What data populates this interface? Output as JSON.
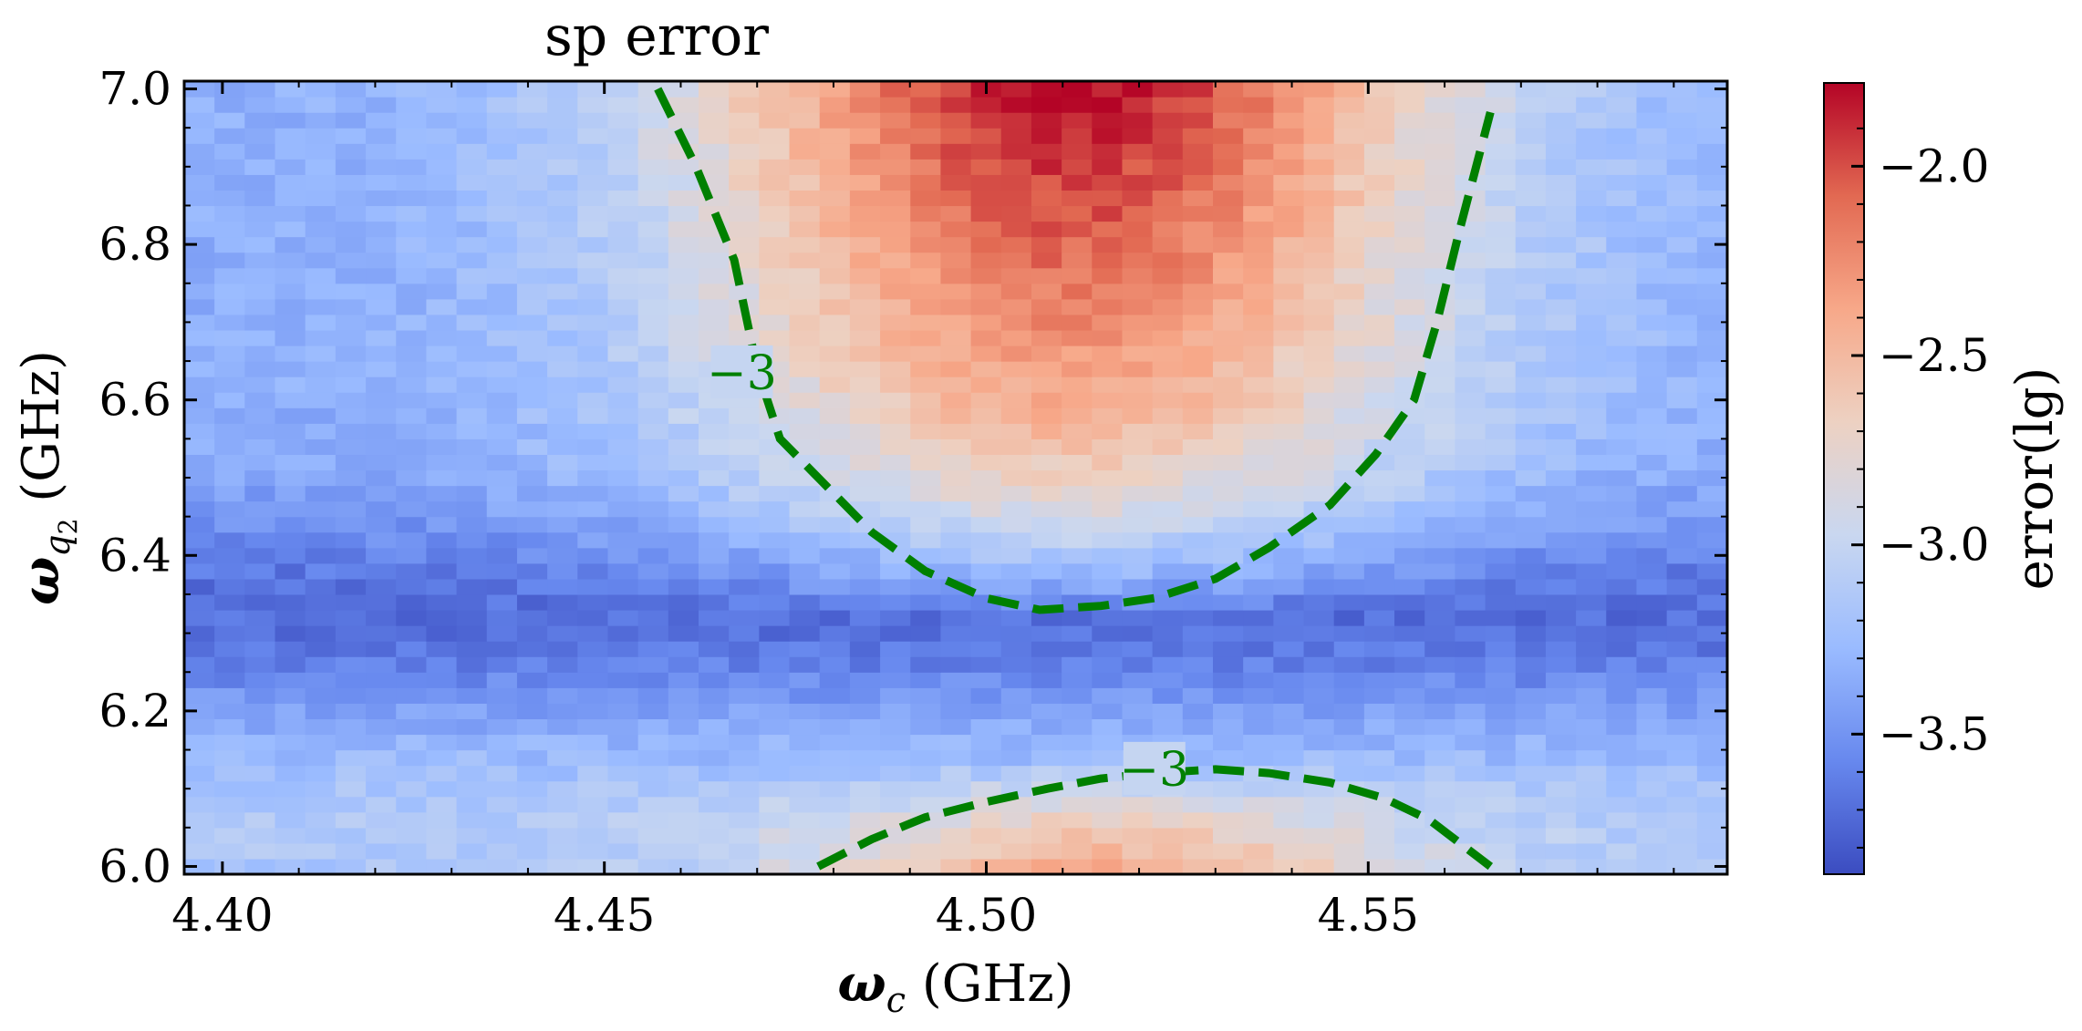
{
  "chart_data": {
    "type": "heatmap",
    "title": "sp error",
    "xlabel": "ω_c (GHz)",
    "ylabel": "ω_q2 (GHz)",
    "x_range": [
      4.395,
      4.597
    ],
    "y_range": [
      5.99,
      7.01
    ],
    "x_ticks": [
      4.4,
      4.45,
      4.5,
      4.55
    ],
    "x_tick_labels": [
      "4.40",
      "4.45",
      "4.50",
      "4.55"
    ],
    "y_ticks": [
      6.0,
      6.2,
      6.4,
      6.6,
      6.8,
      7.0
    ],
    "y_tick_labels": [
      "6.0",
      "6.2",
      "6.4",
      "6.6",
      "6.8",
      "7.0"
    ],
    "grid": {
      "nx": 51,
      "ny": 51
    },
    "colorbar": {
      "label": "error(lg)",
      "range": [
        -3.87,
        -1.78
      ],
      "ticks": [
        -3.5,
        -3.0,
        -2.5,
        -2.0
      ],
      "tick_labels": [
        "−3.5",
        "−3.0",
        "−2.5",
        "−2.0"
      ],
      "colormap": "coolwarm",
      "colors": [
        "#3b4cc0",
        "#6788ee",
        "#9abbff",
        "#c9d7f0",
        "#edd1c2",
        "#f7a889",
        "#e26952",
        "#b40426"
      ]
    },
    "peak": {
      "upper": {
        "x": 4.51,
        "y": 7.0,
        "value": -1.8
      },
      "lower": {
        "x": 4.515,
        "y": 6.0,
        "value": -2.7
      }
    },
    "contours": [
      {
        "level": -3,
        "label": "−3",
        "color": "#008000",
        "style": "dashed",
        "label_at": {
          "x": 4.468,
          "y": 6.635
        },
        "points": [
          [
            4.457,
            7.0
          ],
          [
            4.462,
            6.9
          ],
          [
            4.467,
            6.78
          ],
          [
            4.47,
            6.64
          ],
          [
            4.473,
            6.55
          ],
          [
            4.478,
            6.5
          ],
          [
            4.485,
            6.43
          ],
          [
            4.492,
            6.38
          ],
          [
            4.5,
            6.345
          ],
          [
            4.507,
            6.33
          ],
          [
            4.515,
            6.335
          ],
          [
            4.522,
            6.345
          ],
          [
            4.53,
            6.37
          ],
          [
            4.537,
            6.41
          ],
          [
            4.545,
            6.465
          ],
          [
            4.551,
            6.53
          ],
          [
            4.556,
            6.6
          ],
          [
            4.559,
            6.7
          ],
          [
            4.562,
            6.82
          ],
          [
            4.566,
            6.97
          ]
        ]
      },
      {
        "level": -3,
        "label": "−3",
        "color": "#008000",
        "style": "dashed",
        "label_at": {
          "x": 4.522,
          "y": 6.125
        },
        "points": [
          [
            4.478,
            6.0
          ],
          [
            4.485,
            6.035
          ],
          [
            4.492,
            6.063
          ],
          [
            4.5,
            6.083
          ],
          [
            4.508,
            6.1
          ],
          [
            4.515,
            6.113
          ],
          [
            4.522,
            6.12
          ],
          [
            4.53,
            6.125
          ],
          [
            4.537,
            6.12
          ],
          [
            4.545,
            6.108
          ],
          [
            4.552,
            6.088
          ],
          [
            4.558,
            6.06
          ],
          [
            4.566,
            6.0
          ]
        ]
      }
    ]
  }
}
